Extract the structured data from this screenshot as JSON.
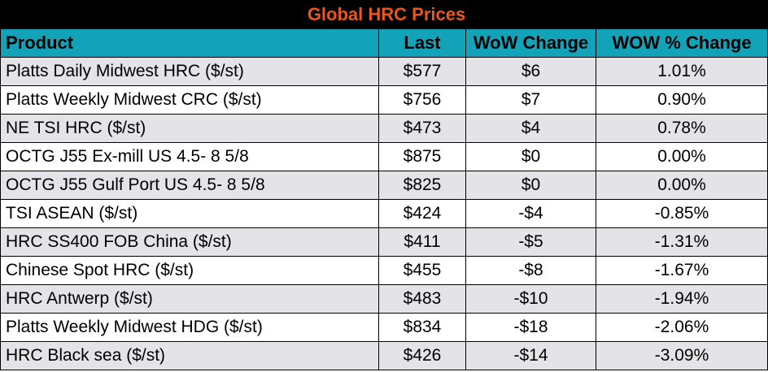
{
  "table": {
    "title": "Global HRC Prices",
    "headers": [
      "Product",
      "Last",
      "WoW Change",
      "WOW % Change"
    ],
    "rows": [
      [
        "Platts Daily Midwest HRC ($/st)",
        "$577",
        "$6",
        "1.01%"
      ],
      [
        "Platts Weekly Midwest CRC ($/st)",
        "$756",
        "$7",
        "0.90%"
      ],
      [
        "NE TSI HRC ($/st)",
        "$473",
        "$4",
        "0.78%"
      ],
      [
        "OCTG J55 Ex-mill US 4.5- 8 5/8",
        "$875",
        "$0",
        "0.00%"
      ],
      [
        "OCTG J55 Gulf Port US 4.5- 8 5/8",
        "$825",
        "$0",
        "0.00%"
      ],
      [
        "TSI ASEAN ($/st)",
        "$424",
        "-$4",
        "-0.85%"
      ],
      [
        "HRC SS400 FOB China ($/st)",
        "$411",
        "-$5",
        "-1.31%"
      ],
      [
        "Chinese Spot HRC ($/st)",
        "$455",
        "-$8",
        "-1.67%"
      ],
      [
        "HRC Antwerp ($/st)",
        "$483",
        "-$10",
        "-1.94%"
      ],
      [
        "Platts Weekly Midwest HDG ($/st)",
        "$834",
        "-$18",
        "-2.06%"
      ],
      [
        "HRC Black sea ($/st)",
        "$426",
        "-$14",
        "-3.09%"
      ]
    ]
  },
  "colors": {
    "title_background": "#000000",
    "title_text": "#e8581d",
    "header_background": "#12a3b8",
    "stripe_background": "#e3e3e8"
  }
}
